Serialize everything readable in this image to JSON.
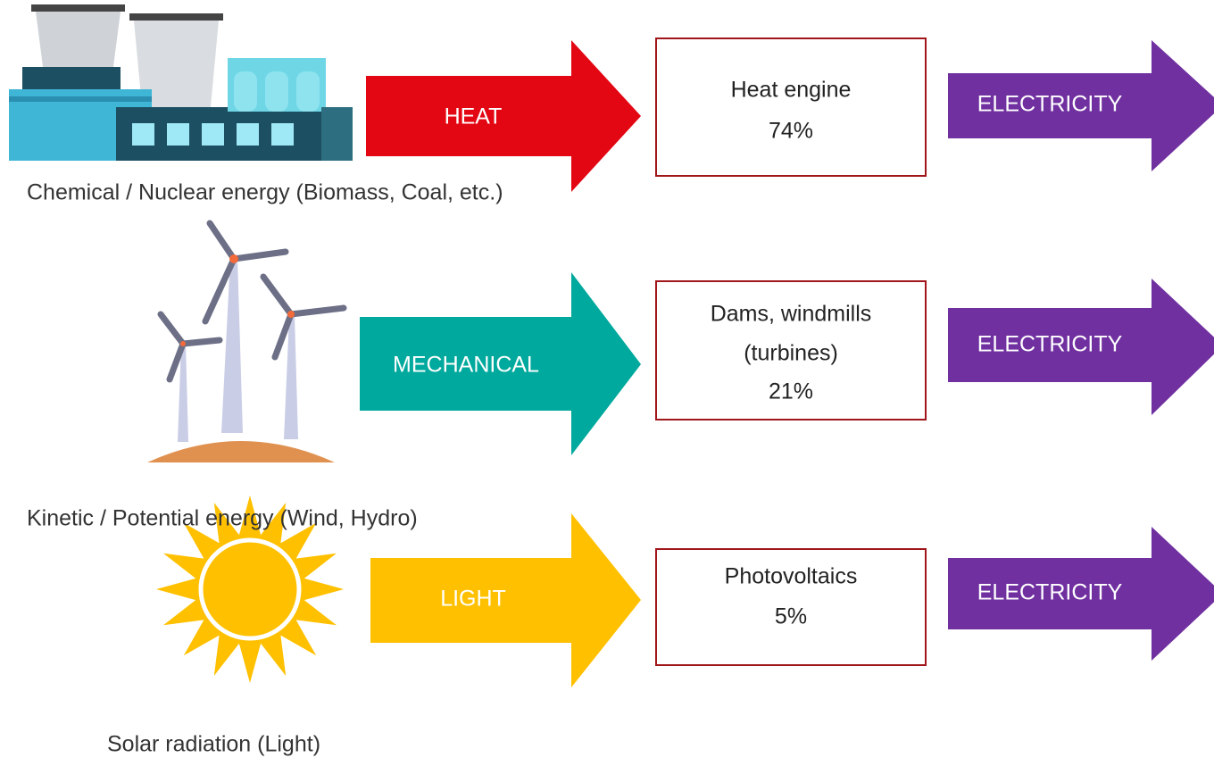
{
  "rows": [
    {
      "source": "Chemical / Nuclear energy (Biomass, Coal, etc.)",
      "form": "HEAT",
      "converter": [
        "Heat engine",
        "74%"
      ],
      "output": "ELECTRICITY"
    },
    {
      "source": "Kinetic / Potential energy (Wind, Hydro)",
      "form": "MECHANICAL",
      "converter": [
        "Dams, windmills",
        "(turbines)",
        "21%"
      ],
      "output": "ELECTRICITY"
    },
    {
      "source": "Solar radiation (Light)",
      "form": "LIGHT",
      "converter": [
        "Photovoltaics",
        "5%"
      ],
      "output": "ELECTRICITY"
    }
  ]
}
